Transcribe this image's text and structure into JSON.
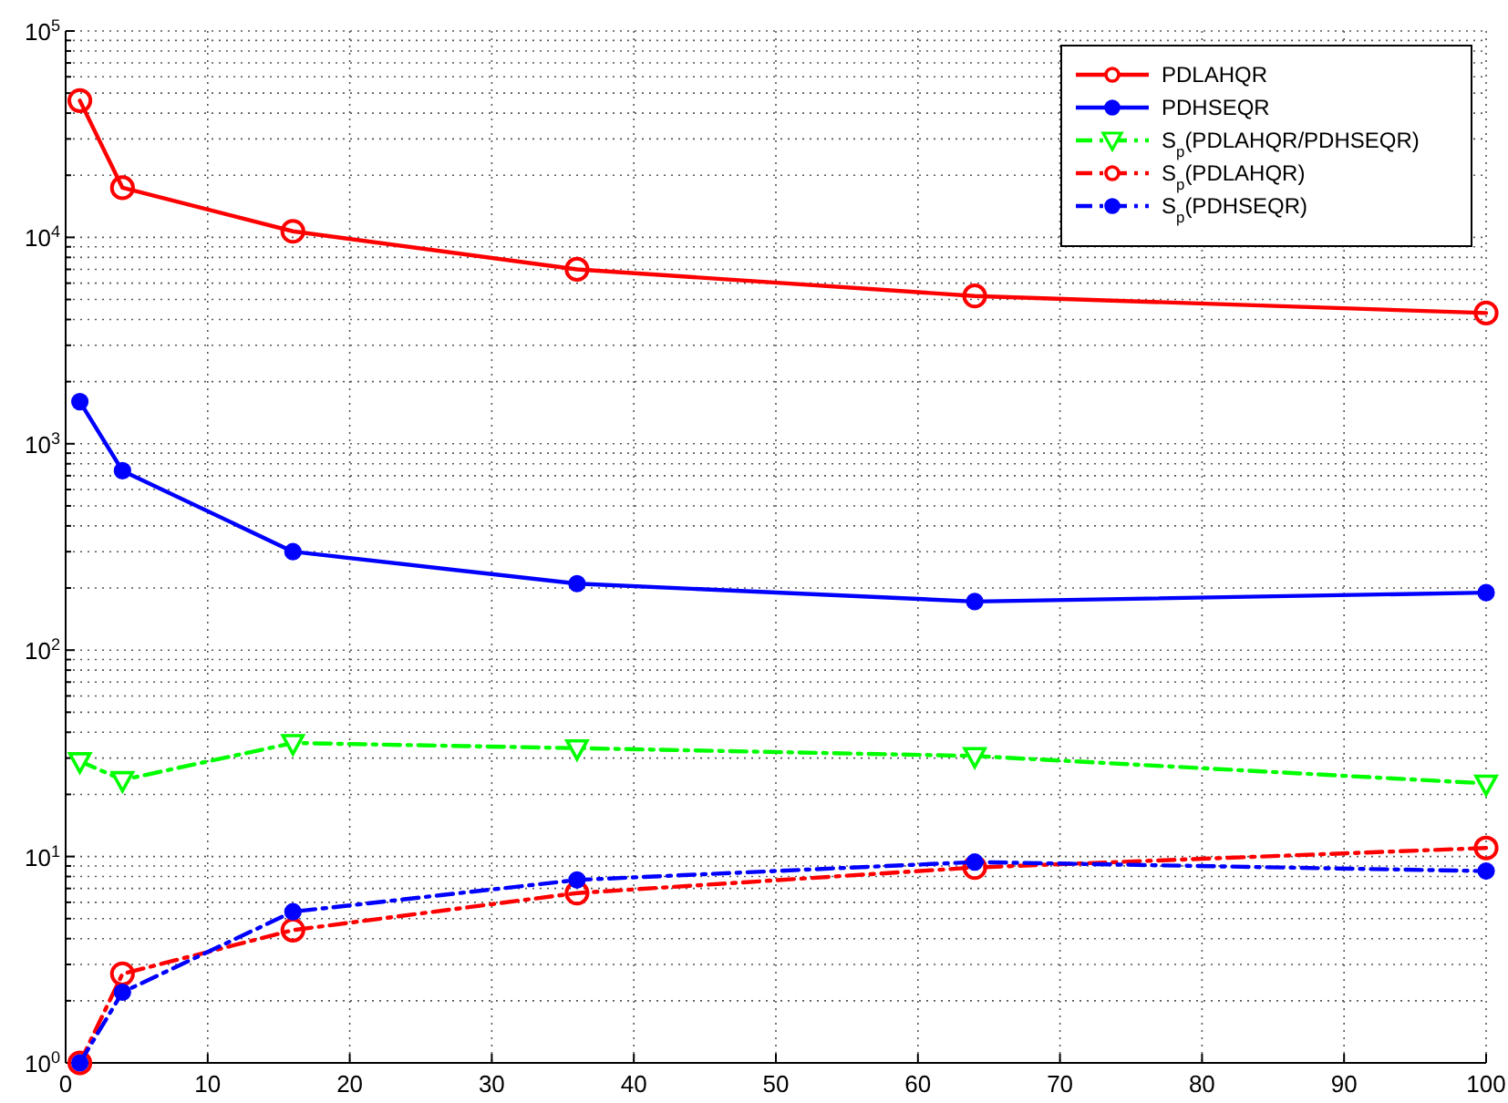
{
  "chart_data": {
    "type": "line",
    "x": [
      1,
      4,
      16,
      36,
      64,
      100
    ],
    "series": [
      {
        "name": "PDLAHQR",
        "color": "#ff0000",
        "values": [
          46000,
          17400,
          10700,
          7000,
          5200,
          4300
        ],
        "marker": "circle",
        "line_style": "solid"
      },
      {
        "name": "PDHSEQR",
        "color": "#0000ff",
        "values": [
          1600,
          740,
          300,
          210,
          172,
          190
        ],
        "marker": "circle",
        "line_style": "solid"
      },
      {
        "name": "S$_{p}$(PDLAHQR/PDHSEQR)",
        "color": "#00ff00",
        "values": [
          29,
          23.5,
          35.5,
          33.5,
          30.7,
          22.6
        ],
        "marker": "triangle",
        "line_style": "dashed"
      },
      {
        "name": "S$_{p}$(PDLAHQR)",
        "color": "#ff0000",
        "values": [
          1,
          2.7,
          4.4,
          6.65,
          8.85,
          11
        ],
        "marker": "circle",
        "line_style": "dashed"
      },
      {
        "name": "S$_{p}$(PDHSEQR)",
        "color": "#0000ff",
        "values": [
          1,
          2.2,
          5.4,
          7.7,
          9.4,
          8.5
        ],
        "marker": "circle",
        "line_style": "dashed"
      }
    ],
    "xlim": [
      0,
      100
    ],
    "xticks": [
      0,
      10,
      20,
      30,
      40,
      50,
      60,
      70,
      80,
      90,
      100
    ],
    "ylim": [
      1,
      100000
    ],
    "yticks": [
      {
        "value": 1,
        "label": "10$^{0}$"
      },
      {
        "value": 10,
        "label": "10$^{1}$"
      },
      {
        "value": 100,
        "label": "10$^{2}$"
      },
      {
        "value": 1000,
        "label": "10$^{3}$"
      },
      {
        "value": 10000,
        "label": "10$^{4}$"
      },
      {
        "value": 100000,
        "label": "10$^{5}$"
      }
    ],
    "log": "y",
    "grid": true,
    "legend": "top right"
  }
}
